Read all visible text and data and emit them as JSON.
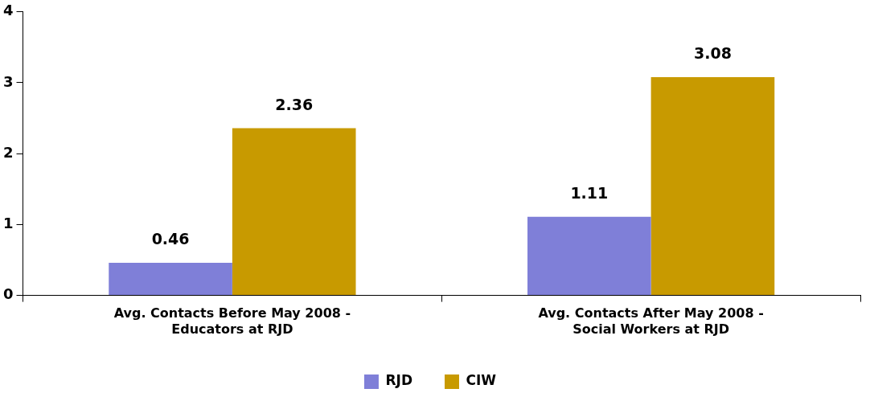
{
  "chart_data": {
    "type": "bar",
    "categories": [
      "Avg. Contacts Before May 2008 - Educators at RJD",
      "Avg. Contacts After May 2008 - Social Workers at RJD"
    ],
    "series": [
      {
        "name": "RJD",
        "color": "#7f7fd8",
        "values": [
          0.46,
          1.11
        ]
      },
      {
        "name": "CIW",
        "color": "#c89a00",
        "values": [
          2.36,
          3.08
        ]
      }
    ],
    "ylim": [
      0,
      4
    ],
    "yticks": [
      0,
      1,
      2,
      3,
      4
    ],
    "grid": false,
    "legend": "bottom",
    "data_labels": true
  }
}
